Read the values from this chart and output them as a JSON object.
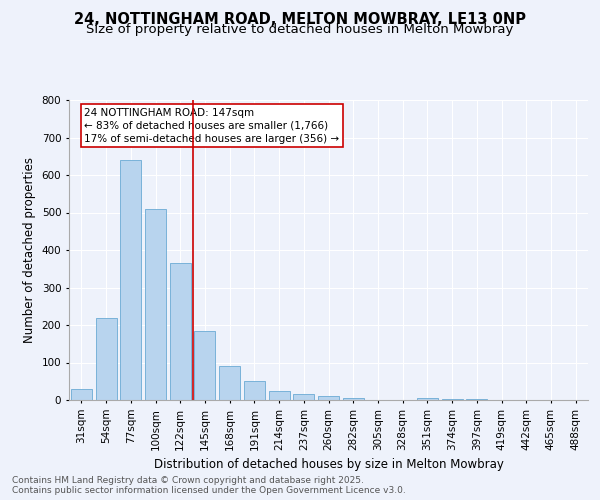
{
  "title_line1": "24, NOTTINGHAM ROAD, MELTON MOWBRAY, LE13 0NP",
  "title_line2": "Size of property relative to detached houses in Melton Mowbray",
  "xlabel": "Distribution of detached houses by size in Melton Mowbray",
  "ylabel": "Number of detached properties",
  "categories": [
    "31sqm",
    "54sqm",
    "77sqm",
    "100sqm",
    "122sqm",
    "145sqm",
    "168sqm",
    "191sqm",
    "214sqm",
    "237sqm",
    "260sqm",
    "282sqm",
    "305sqm",
    "328sqm",
    "351sqm",
    "374sqm",
    "397sqm",
    "419sqm",
    "442sqm",
    "465sqm",
    "488sqm"
  ],
  "values": [
    30,
    220,
    640,
    510,
    365,
    185,
    90,
    50,
    25,
    17,
    12,
    5,
    0,
    0,
    5,
    2,
    3,
    0,
    0,
    0,
    0
  ],
  "bar_color": "#b8d4ee",
  "bar_edge_color": "#6aaad4",
  "vline_position": 5,
  "vline_color": "#cc0000",
  "annotation_text": "24 NOTTINGHAM ROAD: 147sqm\n← 83% of detached houses are smaller (1,766)\n17% of semi-detached houses are larger (356) →",
  "annotation_box_color": "white",
  "annotation_box_edge_color": "#cc0000",
  "ylim": [
    0,
    800
  ],
  "yticks": [
    0,
    100,
    200,
    300,
    400,
    500,
    600,
    700,
    800
  ],
  "background_color": "#eef2fb",
  "grid_color": "#d8e4f0",
  "footer_text": "Contains HM Land Registry data © Crown copyright and database right 2025.\nContains public sector information licensed under the Open Government Licence v3.0.",
  "title_fontsize": 10.5,
  "subtitle_fontsize": 9.5,
  "axis_label_fontsize": 8.5,
  "tick_fontsize": 7.5,
  "annotation_fontsize": 7.5,
  "footer_fontsize": 6.5
}
